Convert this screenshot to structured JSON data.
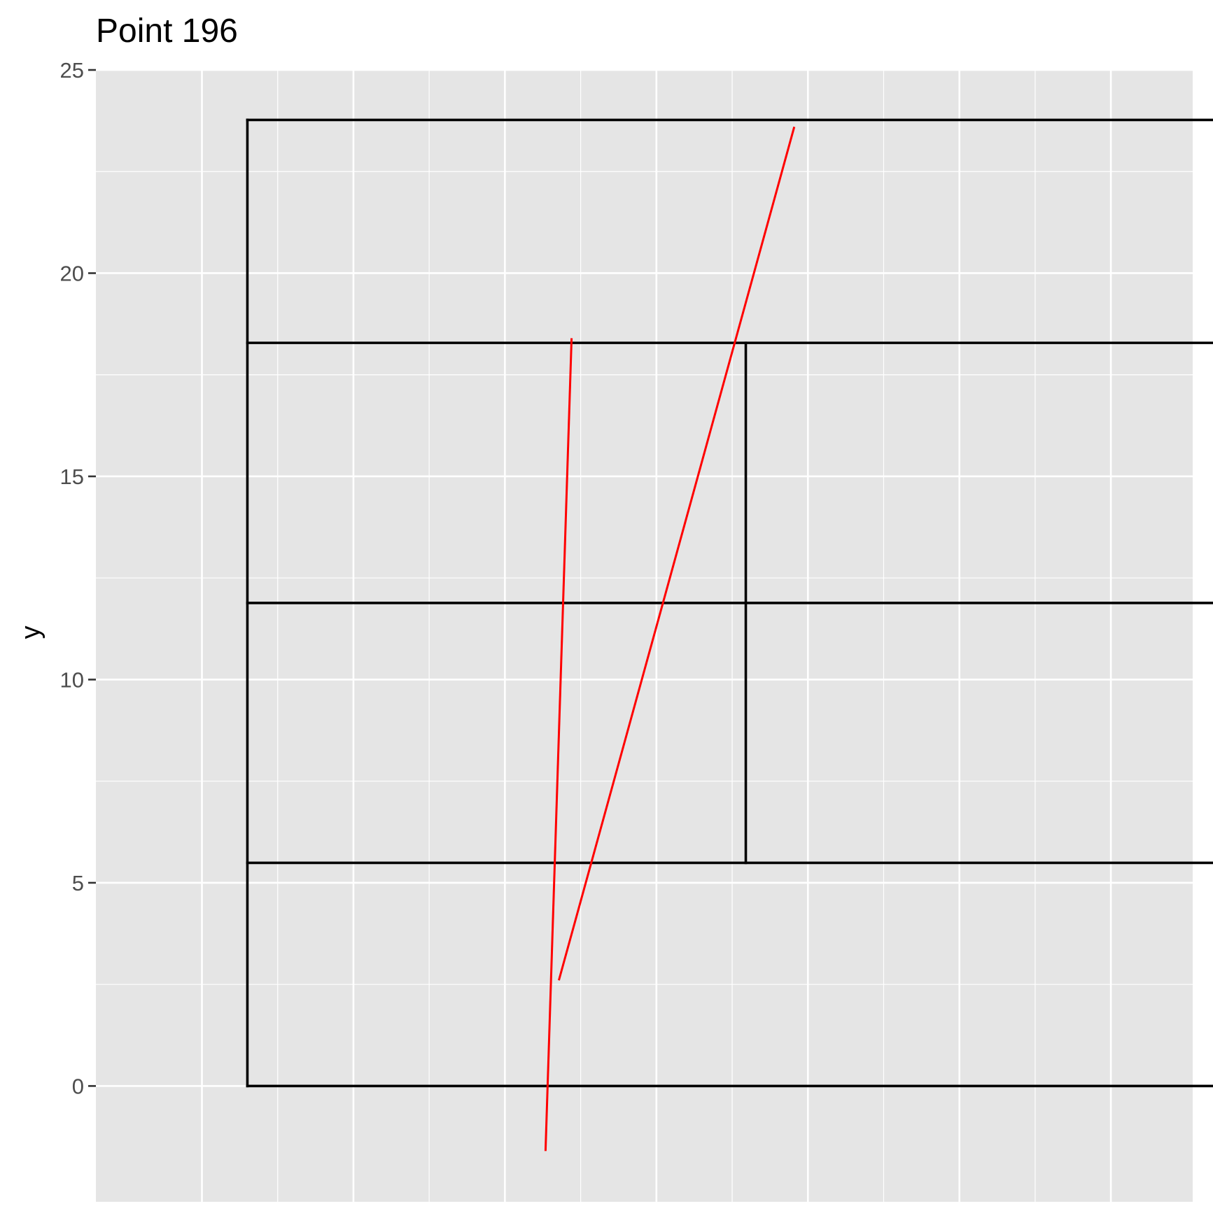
{
  "chart_data": {
    "type": "line",
    "title": "Point 196",
    "xlabel": "",
    "ylabel": "y",
    "xlim": [
      -8.5,
      27.7
    ],
    "ylim": [
      -2.85,
      25.0
    ],
    "y_ticks": [
      0,
      5,
      10,
      15,
      20,
      25
    ],
    "y_minor": [
      2.5,
      7.5,
      12.5,
      17.5,
      22.5
    ],
    "x_grid": [
      -5,
      0,
      5,
      10,
      15,
      20,
      25
    ],
    "x_grid_minor": [
      -2.5,
      2.5,
      7.5,
      12.5,
      17.5,
      22.5
    ],
    "x_tick_labels_visible": false,
    "grid": true,
    "colors": {
      "panel_background": "#e5e5e5",
      "grid": "#ffffff",
      "court_lines": "#000000",
      "series": "#ff0000"
    },
    "court_segments": [
      {
        "x": [
          -3.5,
          29.4
        ],
        "y": [
          0,
          0
        ]
      },
      {
        "x": [
          -3.5,
          29.4
        ],
        "y": [
          23.77,
          23.77
        ]
      },
      {
        "x": [
          -3.5,
          -3.5
        ],
        "y": [
          0,
          23.77
        ]
      },
      {
        "x": [
          29.4,
          29.4
        ],
        "y": [
          0,
          23.77
        ]
      },
      {
        "x": [
          -3.5,
          29.4
        ],
        "y": [
          5.49,
          5.49
        ]
      },
      {
        "x": [
          -3.5,
          29.4
        ],
        "y": [
          11.885,
          11.885
        ]
      },
      {
        "x": [
          -3.5,
          29.4
        ],
        "y": [
          18.285,
          18.285
        ]
      },
      {
        "x": [
          12.95,
          12.95
        ],
        "y": [
          5.49,
          18.285
        ]
      }
    ],
    "series": [
      {
        "x": [
          6.34,
          7.2
        ],
        "y": [
          -1.6,
          18.4
        ]
      },
      {
        "x": [
          6.78,
          14.55
        ],
        "y": [
          2.6,
          23.6
        ]
      }
    ]
  }
}
